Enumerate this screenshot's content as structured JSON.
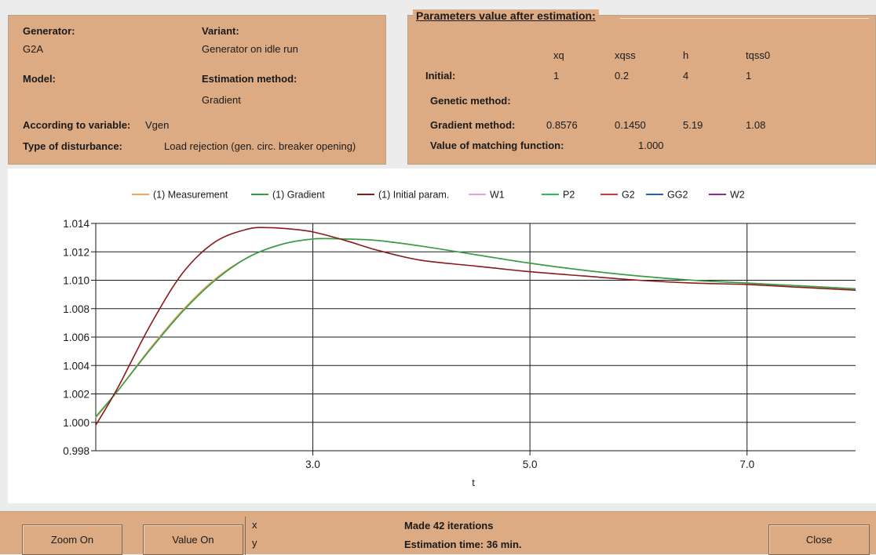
{
  "left_panel": {
    "generator_label": "Generator:",
    "generator_value": "G2A",
    "variant_label": "Variant:",
    "variant_value": "Generator on idle run",
    "model_label": "Model:",
    "estimation_method_label": "Estimation method:",
    "estimation_method_value": "Gradient",
    "variable_label": "According to variable:",
    "variable_value": "Vgen",
    "disturbance_label": "Type of disturbance:",
    "disturbance_value": "Load rejection (gen. circ. breaker opening)"
  },
  "right_panel": {
    "title": "Parameters value after estimation:",
    "headers": [
      "xq",
      "xqss",
      "h",
      "tqss0"
    ],
    "initial_label": "Initial:",
    "initial_values": [
      "1",
      "0.2",
      "4",
      "1"
    ],
    "genetic_label": "Genetic method:",
    "gradient_label": "Gradient method:",
    "gradient_values": [
      "0.8576",
      "0.1450",
      "5.19",
      "1.08"
    ],
    "matching_label": "Value of matching function:",
    "matching_value": "1.000"
  },
  "legend": [
    {
      "label": "(1) Measurement",
      "color": "#f4a460"
    },
    {
      "label": "(1) Gradient",
      "color": "#2e9e4a"
    },
    {
      "label": "(1) Initial param.",
      "color": "#8b1a1a"
    },
    {
      "label": "W1",
      "color": "#e8a0d8"
    },
    {
      "label": "P2",
      "color": "#22c05a"
    },
    {
      "label": "G2",
      "color": "#e83030"
    },
    {
      "label": "GG2",
      "color": "#1f5fbf"
    },
    {
      "label": "W2",
      "color": "#8a2a9a"
    }
  ],
  "chart_data": {
    "type": "line",
    "xlabel": "t",
    "ylabel": "",
    "xlim": [
      1.0,
      8.0
    ],
    "ylim": [
      0.998,
      1.014
    ],
    "x_ticks": [
      3.0,
      5.0,
      7.0
    ],
    "x_tick_labels": [
      "3.0",
      "5.0",
      "7.0"
    ],
    "y_ticks": [
      0.998,
      1.0,
      1.002,
      1.004,
      1.006,
      1.008,
      1.01,
      1.012,
      1.014
    ],
    "y_tick_labels": [
      "0.998",
      "1.000",
      "1.002",
      "1.004",
      "1.006",
      "1.008",
      "1.010",
      "1.012",
      "1.014"
    ],
    "grid": true,
    "legend_position": "top",
    "series": [
      {
        "name": "(1) Measurement",
        "color": "#f4a460",
        "x": [
          1.0,
          1.2,
          1.5,
          1.8,
          2.1,
          2.4,
          2.7,
          3.0,
          3.3,
          3.6,
          4.0,
          4.5,
          5.0,
          5.5,
          6.0,
          6.5,
          7.0,
          7.5,
          8.0
        ],
        "y": [
          1.0003,
          1.0022,
          1.0052,
          1.0079,
          1.0101,
          1.0116,
          1.0125,
          1.0129,
          1.0129,
          1.0128,
          1.0124,
          1.0118,
          1.0112,
          1.0107,
          1.0103,
          1.01,
          1.0098,
          1.0096,
          1.0094
        ]
      },
      {
        "name": "(1) Gradient",
        "color": "#2e9e4a",
        "x": [
          1.0,
          1.2,
          1.5,
          1.8,
          2.1,
          2.4,
          2.7,
          3.0,
          3.3,
          3.6,
          4.0,
          4.5,
          5.0,
          5.5,
          6.0,
          6.5,
          7.0,
          7.5,
          8.0
        ],
        "y": [
          1.0004,
          1.0022,
          1.0051,
          1.0078,
          1.01,
          1.0116,
          1.0125,
          1.0129,
          1.0129,
          1.0128,
          1.0124,
          1.0118,
          1.0112,
          1.0107,
          1.0103,
          1.01,
          1.0098,
          1.0096,
          1.0094
        ]
      },
      {
        "name": "(1) Initial param.",
        "color": "#8b1a1a",
        "x": [
          1.0,
          1.2,
          1.5,
          1.8,
          2.1,
          2.4,
          2.6,
          2.8,
          3.0,
          3.3,
          3.6,
          4.0,
          4.5,
          5.0,
          5.5,
          6.0,
          6.5,
          7.0,
          7.5,
          8.0
        ],
        "y": [
          0.9998,
          1.0024,
          1.0068,
          1.0105,
          1.0127,
          1.0136,
          1.0137,
          1.0136,
          1.0134,
          1.0128,
          1.0121,
          1.0114,
          1.011,
          1.0106,
          1.0103,
          1.01,
          1.0098,
          1.0097,
          1.0095,
          1.0093
        ]
      }
    ]
  },
  "bottom_bar": {
    "zoom_label": "Zoom On",
    "value_label": "Value On",
    "coord_x": "x",
    "coord_y": "y",
    "iterations_text": "Made 42 iterations",
    "estimation_time_text": "Estimation time: 36 min.",
    "close_label": "Close"
  }
}
